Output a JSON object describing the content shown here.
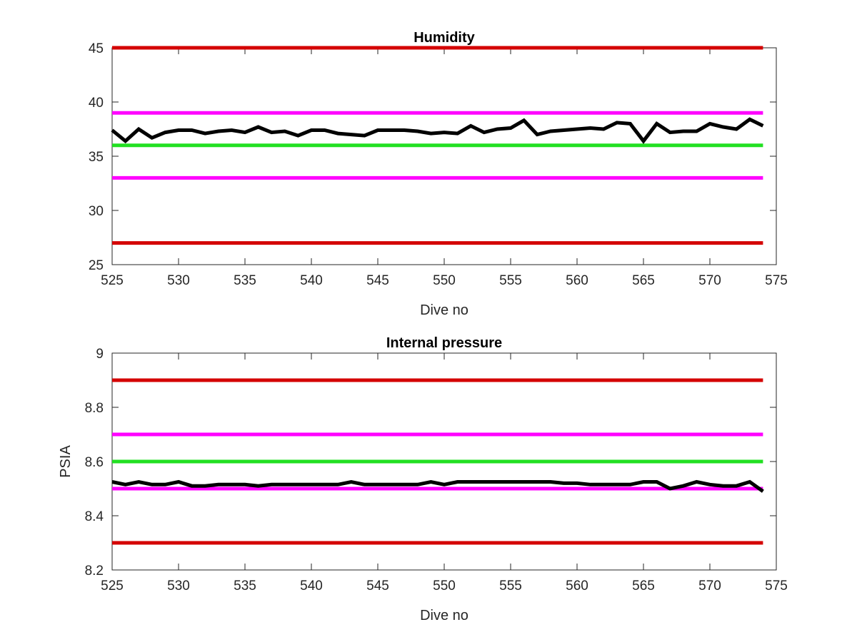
{
  "chart_data": [
    {
      "type": "line",
      "title": "Humidity",
      "xlabel": "Dive no",
      "ylabel": "",
      "xlim": [
        525,
        575
      ],
      "ylim": [
        25,
        45
      ],
      "xticks": [
        "525",
        "530",
        "535",
        "540",
        "545",
        "550",
        "555",
        "560",
        "565",
        "570",
        "575"
      ],
      "yticks": [
        "25",
        "30",
        "35",
        "40",
        "45"
      ],
      "grid": false,
      "thresholds": [
        {
          "y": 45,
          "color": "#d40000"
        },
        {
          "y": 39,
          "color": "#ff00ff"
        },
        {
          "y": 36,
          "color": "#22e022"
        },
        {
          "y": 33,
          "color": "#ff00ff"
        },
        {
          "y": 27,
          "color": "#d40000"
        }
      ],
      "series": [
        {
          "color": "#000000",
          "x": [
            525,
            526,
            527,
            528,
            529,
            530,
            531,
            532,
            533,
            534,
            535,
            536,
            537,
            538,
            539,
            540,
            541,
            542,
            543,
            544,
            545,
            546,
            547,
            548,
            549,
            550,
            551,
            552,
            553,
            554,
            555,
            556,
            557,
            558,
            559,
            560,
            561,
            562,
            563,
            564,
            565,
            566,
            567,
            568,
            569,
            570,
            571,
            572,
            573,
            574
          ],
          "values": [
            37.4,
            36.4,
            37.5,
            36.7,
            37.2,
            37.4,
            37.4,
            37.1,
            37.3,
            37.4,
            37.2,
            37.7,
            37.2,
            37.3,
            36.9,
            37.4,
            37.4,
            37.1,
            37.0,
            36.9,
            37.4,
            37.4,
            37.4,
            37.3,
            37.1,
            37.2,
            37.1,
            37.8,
            37.2,
            37.5,
            37.6,
            38.3,
            37.0,
            37.3,
            37.4,
            37.5,
            37.6,
            37.5,
            38.1,
            38.0,
            36.4,
            38.0,
            37.2,
            37.3,
            37.3,
            38.0,
            37.7,
            37.5,
            38.4,
            37.8
          ]
        }
      ]
    },
    {
      "type": "line",
      "title": "Internal pressure",
      "xlabel": "Dive no",
      "ylabel": "PSIA",
      "xlim": [
        525,
        575
      ],
      "ylim": [
        8.2,
        9
      ],
      "xticks": [
        "525",
        "530",
        "535",
        "540",
        "545",
        "550",
        "555",
        "560",
        "565",
        "570",
        "575"
      ],
      "yticks": [
        "8.2",
        "8.4",
        "8.6",
        "8.8",
        "9"
      ],
      "grid": false,
      "thresholds": [
        {
          "y": 8.9,
          "color": "#d40000"
        },
        {
          "y": 8.7,
          "color": "#ff00ff"
        },
        {
          "y": 8.6,
          "color": "#22e022"
        },
        {
          "y": 8.5,
          "color": "#ff00ff"
        },
        {
          "y": 8.3,
          "color": "#d40000"
        }
      ],
      "series": [
        {
          "color": "#000000",
          "x": [
            525,
            526,
            527,
            528,
            529,
            530,
            531,
            532,
            533,
            534,
            535,
            536,
            537,
            538,
            539,
            540,
            541,
            542,
            543,
            544,
            545,
            546,
            547,
            548,
            549,
            550,
            551,
            552,
            553,
            554,
            555,
            556,
            557,
            558,
            559,
            560,
            561,
            562,
            563,
            564,
            565,
            566,
            567,
            568,
            569,
            570,
            571,
            572,
            573,
            574
          ],
          "values": [
            8.525,
            8.515,
            8.525,
            8.515,
            8.515,
            8.525,
            8.51,
            8.51,
            8.515,
            8.515,
            8.515,
            8.51,
            8.515,
            8.515,
            8.515,
            8.515,
            8.515,
            8.515,
            8.525,
            8.515,
            8.515,
            8.515,
            8.515,
            8.515,
            8.525,
            8.515,
            8.525,
            8.525,
            8.525,
            8.525,
            8.525,
            8.525,
            8.525,
            8.525,
            8.52,
            8.52,
            8.515,
            8.515,
            8.515,
            8.515,
            8.525,
            8.525,
            8.5,
            8.51,
            8.525,
            8.515,
            8.51,
            8.51,
            8.525,
            8.49
          ]
        }
      ]
    }
  ]
}
